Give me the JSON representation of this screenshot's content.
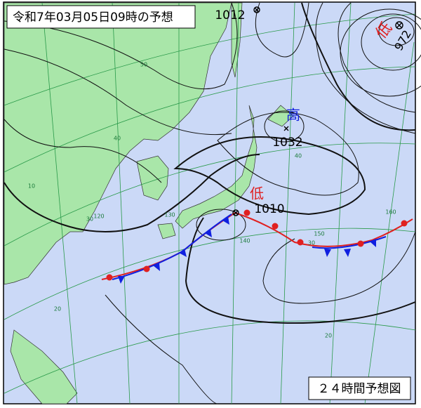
{
  "header": {
    "title": "令和7年03月05日09時の予想"
  },
  "footer": {
    "label": "２４時間予想図"
  },
  "pressure_systems": [
    {
      "kind": "低",
      "value": 972
    },
    {
      "kind": "高",
      "value": 1032
    },
    {
      "kind": "低",
      "value": 1010
    }
  ],
  "isobar_labels": [
    1012
  ],
  "grid_labels": [
    50,
    40,
    40,
    30,
    30,
    20,
    20,
    10,
    120,
    130,
    140,
    150,
    160
  ]
}
